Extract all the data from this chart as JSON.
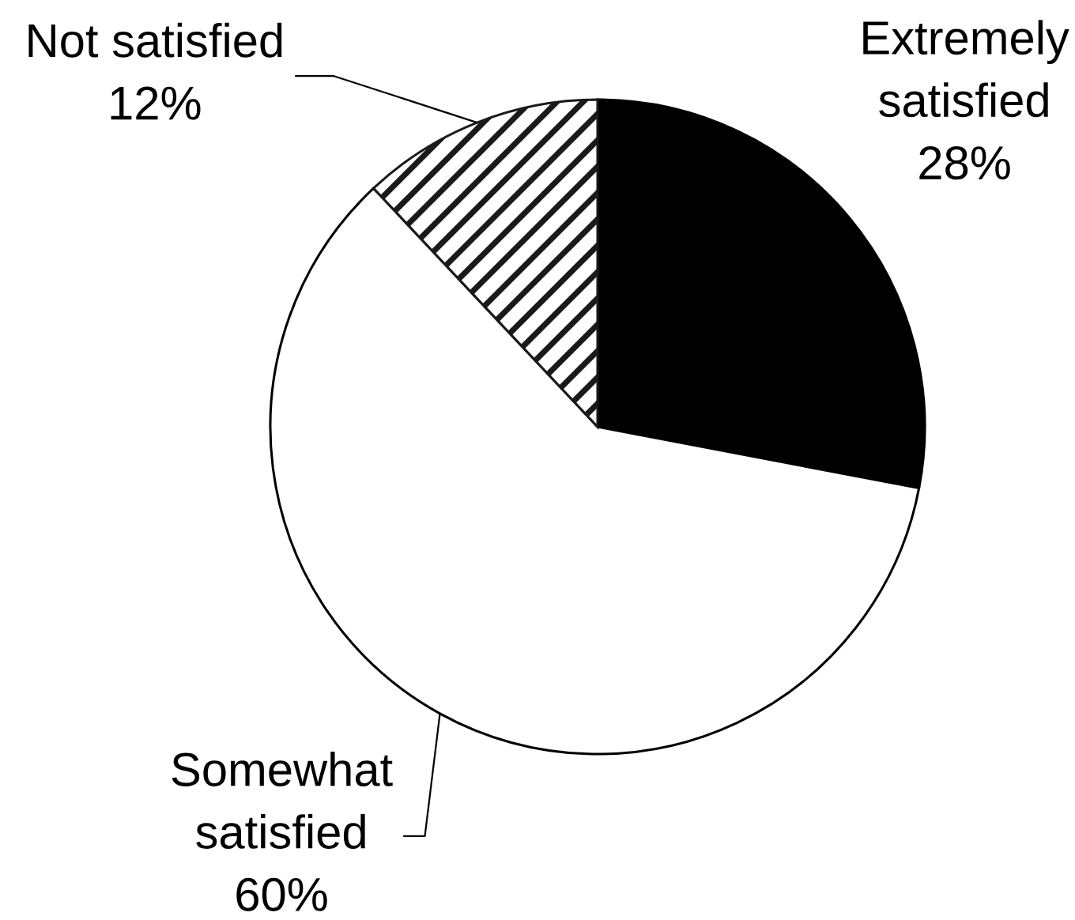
{
  "chart_data": {
    "type": "pie",
    "categories": [
      "Extremely\nsatisfied",
      "Somewhat\nsatisfied",
      "Not satisfied"
    ],
    "values": [
      28,
      60,
      12
    ],
    "value_labels": [
      "28%",
      "60%",
      "12%"
    ],
    "colors": [
      "#000000",
      "#ffffff",
      "#1a1a1a"
    ]
  }
}
